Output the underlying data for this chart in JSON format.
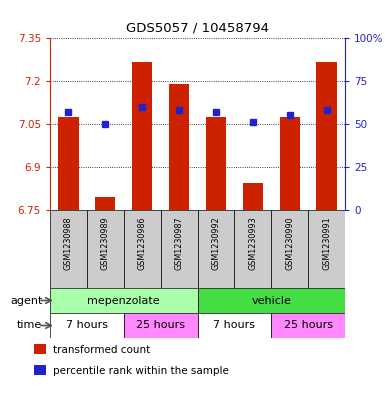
{
  "title": "GDS5057 / 10458794",
  "samples": [
    "GSM1230988",
    "GSM1230989",
    "GSM1230986",
    "GSM1230987",
    "GSM1230992",
    "GSM1230993",
    "GSM1230990",
    "GSM1230991"
  ],
  "transformed_count": [
    7.075,
    6.795,
    7.265,
    7.19,
    7.075,
    6.845,
    7.075,
    7.265
  ],
  "percentile_rank": [
    57,
    50,
    60,
    58,
    57,
    51,
    55,
    58
  ],
  "ylim_left": [
    6.75,
    7.35
  ],
  "ylim_right": [
    0,
    100
  ],
  "yticks_left": [
    6.75,
    6.9,
    7.05,
    7.2,
    7.35
  ],
  "yticks_right": [
    0,
    25,
    50,
    75,
    100
  ],
  "ytick_labels_left": [
    "6.75",
    "6.9",
    "7.05",
    "7.2",
    "7.35"
  ],
  "ytick_labels_right": [
    "0",
    "25",
    "50",
    "75",
    "100%"
  ],
  "bar_color": "#cc2200",
  "dot_color": "#2222cc",
  "agent_groups": [
    {
      "label": "mepenzolate",
      "start": 0,
      "end": 4,
      "color": "#aaffaa"
    },
    {
      "label": "vehicle",
      "start": 4,
      "end": 8,
      "color": "#44dd44"
    }
  ],
  "time_groups": [
    {
      "label": "7 hours",
      "start": 0,
      "end": 2,
      "color": "#ffffff"
    },
    {
      "label": "25 hours",
      "start": 2,
      "end": 4,
      "color": "#ff88ff"
    },
    {
      "label": "7 hours",
      "start": 4,
      "end": 6,
      "color": "#ffffff"
    },
    {
      "label": "25 hours",
      "start": 6,
      "end": 8,
      "color": "#ff88ff"
    }
  ],
  "legend_items": [
    {
      "label": "transformed count",
      "color": "#cc2200"
    },
    {
      "label": "percentile rank within the sample",
      "color": "#2222cc"
    }
  ],
  "grid_color": "#000000",
  "axis_color_left": "#cc2200",
  "axis_color_right": "#2222cc",
  "sample_bg_color": "#cccccc",
  "fig_width": 3.85,
  "fig_height": 3.93
}
